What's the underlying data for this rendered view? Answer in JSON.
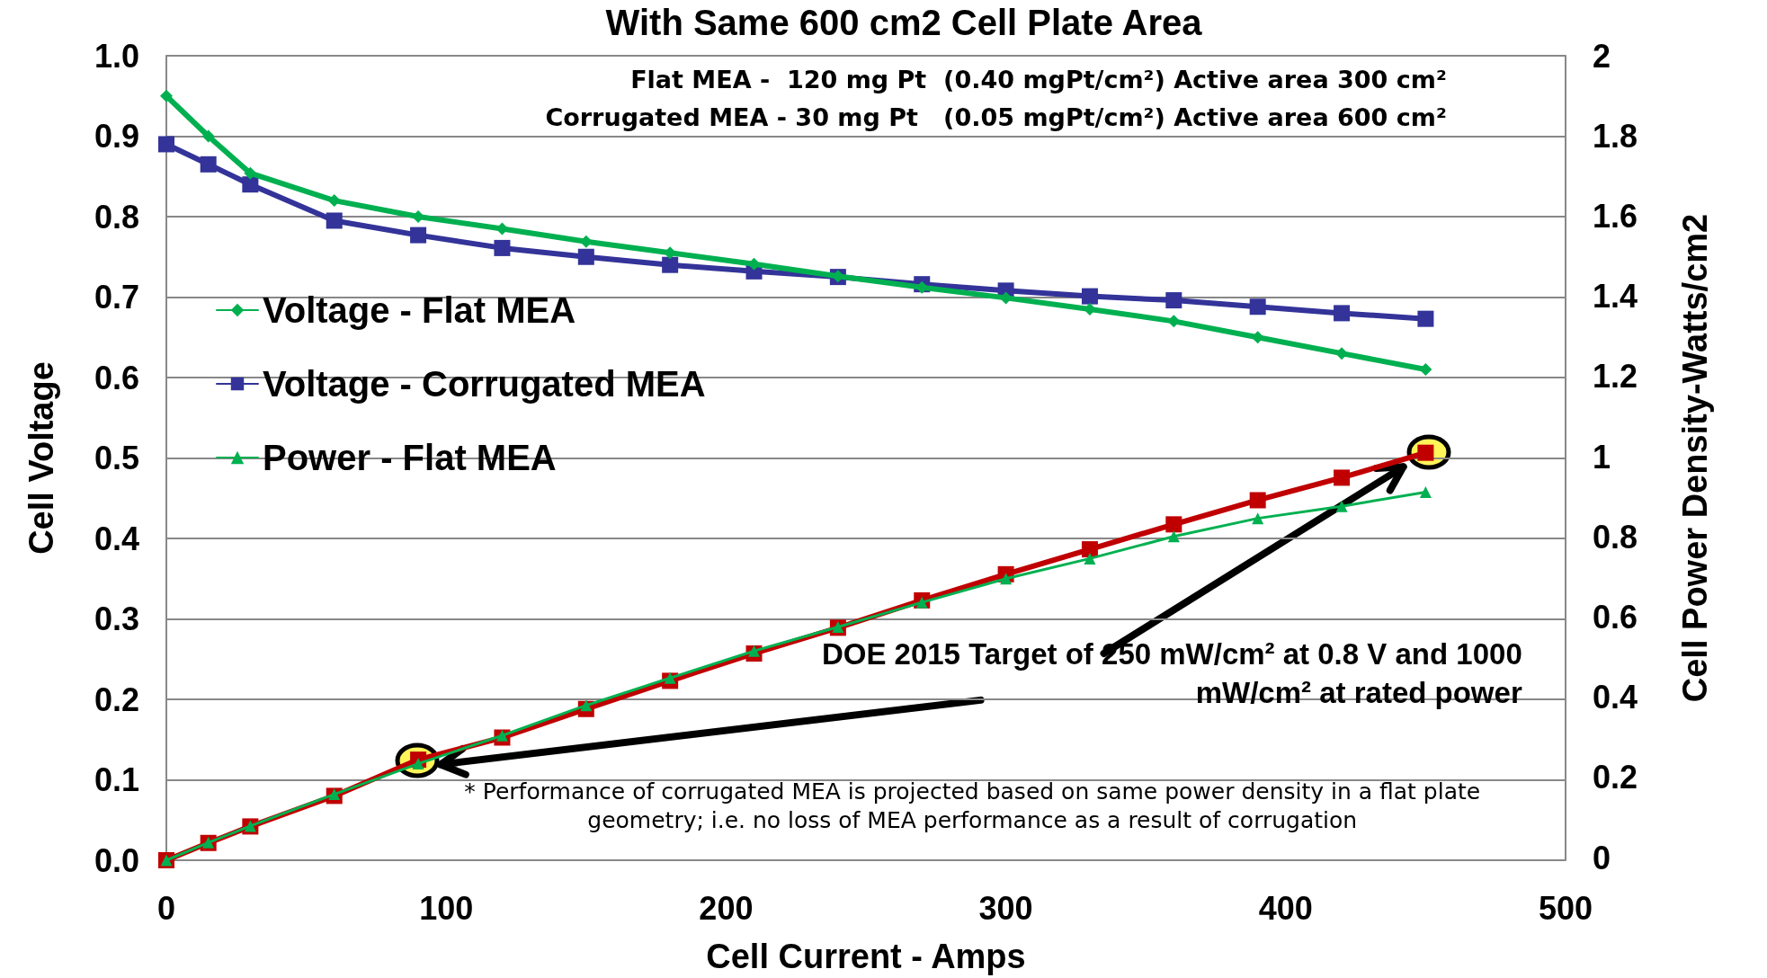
{
  "chart_data": {
    "type": "line",
    "title": "With Same 600 cm2 Cell Plate Area",
    "xlabel": "Cell Current - Amps",
    "ylabel": "Cell Voltage",
    "y2label": "Cell Power Density-Watts/cm2",
    "x": [
      0,
      15,
      30,
      60,
      90,
      120,
      150,
      180,
      210,
      240,
      270,
      300,
      330,
      360,
      390,
      420,
      450
    ],
    "series": [
      {
        "name": "Voltage - Flat MEA",
        "color": "#00b050",
        "marker": "diamond",
        "values": [
          0.95,
          0.9,
          0.854,
          0.82,
          0.8,
          0.785,
          0.769,
          0.755,
          0.741,
          0.726,
          0.712,
          0.699,
          0.685,
          0.67,
          0.65,
          0.63,
          0.61
        ]
      },
      {
        "name": "Voltage - Corrugated MEA",
        "color": "#333399",
        "marker": "square",
        "values": [
          0.89,
          0.865,
          0.84,
          0.795,
          0.777,
          0.761,
          0.75,
          0.74,
          0.732,
          0.725,
          0.716,
          0.708,
          0.701,
          0.696,
          0.688,
          0.68,
          0.673
        ]
      },
      {
        "name": "Power - Flat MEA",
        "color": "#00b050",
        "marker": "triangle",
        "axis": "y2",
        "values": [
          0,
          0.044,
          0.085,
          0.164,
          0.24,
          0.31,
          0.385,
          0.453,
          0.52,
          0.58,
          0.641,
          0.7,
          0.75,
          0.805,
          0.85,
          0.88,
          0.915
        ]
      },
      {
        "color": "#c00000",
        "marker": "square",
        "axis": "y2",
        "values": [
          0,
          0.043,
          0.084,
          0.16,
          0.25,
          0.305,
          0.376,
          0.446,
          0.514,
          0.578,
          0.646,
          0.711,
          0.773,
          0.835,
          0.895,
          0.951,
          1.013
        ]
      }
    ],
    "xlim": [
      0,
      500
    ],
    "xticks": [
      0,
      100,
      200,
      300,
      400,
      500
    ],
    "ylim": [
      0,
      1.0
    ],
    "yticks": [
      {
        "value": 0,
        "label": "0.0"
      },
      {
        "value": 0.1,
        "label": "0.1"
      },
      {
        "value": 0.2,
        "label": "0.2"
      },
      {
        "value": 0.3,
        "label": "0.3"
      },
      {
        "value": 0.4,
        "label": "0.4"
      },
      {
        "value": 0.5,
        "label": "0.5"
      },
      {
        "value": 0.6,
        "label": "0.6"
      },
      {
        "value": 0.7,
        "label": "0.7"
      },
      {
        "value": 0.8,
        "label": "0.8"
      },
      {
        "value": 0.9,
        "label": "0.9"
      },
      {
        "value": 1.0,
        "label": "1.0"
      }
    ],
    "y2lim": [
      0,
      2
    ],
    "y2ticks": [
      0,
      0.2,
      0.4,
      0.6,
      0.8,
      1,
      1.2,
      1.4,
      1.6,
      1.8,
      2
    ],
    "grid": "y",
    "legend": "left",
    "line_style": "solid",
    "annotations": [
      "Flat MEA -  120 mg Pt  (0.40 mgPt/cm²) Active area 300 cm²",
      "Corrugated MEA - 30 mg Pt   (0.05 mgPt/cm²) Active area 600 cm²",
      "DOE 2015 Target of 250 mW/cm² at 0.8 V and 1000 mW/cm² at rated power",
      "* Performance of corrugated MEA is projected based on same power density in a flat plate geometry; i.e. no loss of MEA performance as a result of corrugation"
    ]
  }
}
